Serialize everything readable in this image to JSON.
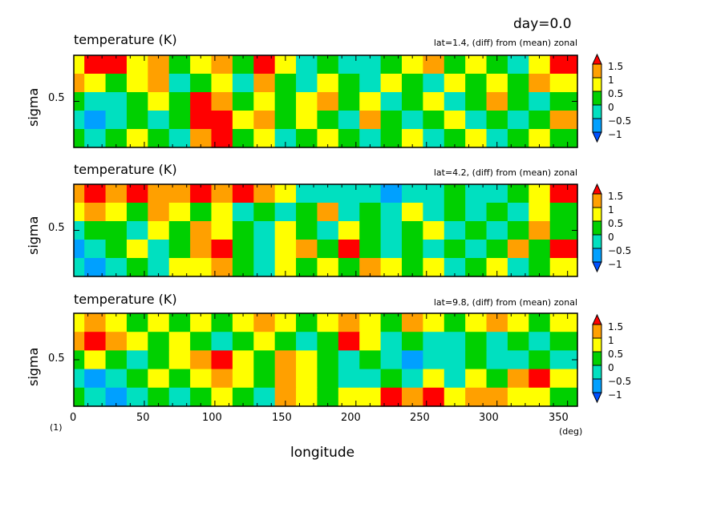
{
  "header": {
    "day_label": "day=0.0",
    "figure_id": "(1)"
  },
  "x_axis": {
    "label": "longitude",
    "unit": "(deg)",
    "ticks": [
      "0",
      "50",
      "100",
      "150",
      "200",
      "250",
      "300",
      "350"
    ]
  },
  "colorbar": {
    "labels": [
      "1.5",
      "1",
      "0.5",
      "0",
      "−0.5",
      "−1"
    ],
    "levels": [
      -1,
      -0.5,
      0,
      0.5,
      1,
      1.5
    ],
    "colors": [
      "#0050ff",
      "#00a0ff",
      "#00e0c0",
      "#00d000",
      "#ffff00",
      "#ffa000",
      "#ff0000"
    ]
  },
  "panels": [
    {
      "title": "temperature (K)",
      "subtitle": "lat=1.4, (diff) from (mean) zonal",
      "ylabel": "sigma",
      "ytick": "0.5"
    },
    {
      "title": "temperature (K)",
      "subtitle": "lat=4.2, (diff) from (mean) zonal",
      "ylabel": "sigma",
      "ytick": "0.5"
    },
    {
      "title": "temperature (K)",
      "subtitle": "lat=9.8, (diff) from (mean) zonal",
      "ylabel": "sigma",
      "ytick": "0.5"
    }
  ],
  "chart_data": [
    {
      "type": "heatmap",
      "title": "temperature (K)",
      "subtitle": "lat=1.4, (diff) from (mean) zonal",
      "xlabel": "longitude",
      "ylabel": "sigma",
      "xlim": [
        0,
        357
      ],
      "ylim": [
        1,
        0
      ],
      "x_ticks": [
        0,
        50,
        100,
        150,
        200,
        250,
        300,
        350
      ],
      "y_ticks": [
        0.5
      ],
      "color_levels": [
        -1,
        -0.5,
        0,
        0.5,
        1,
        1.5
      ],
      "x": [
        0,
        15,
        30,
        45,
        60,
        75,
        90,
        105,
        120,
        135,
        150,
        165,
        180,
        195,
        210,
        225,
        240,
        255,
        270,
        285,
        300,
        315,
        330,
        345
      ],
      "y": [
        0.1,
        0.3,
        0.5,
        0.7,
        0.9
      ],
      "values": [
        [
          0.5,
          1.5,
          1.5,
          0.5,
          1.0,
          0.0,
          0.5,
          1.0,
          0.0,
          1.5,
          0.5,
          -0.5,
          0.0,
          -0.5,
          -0.5,
          0.0,
          0.5,
          1.0,
          0.0,
          0.5,
          0.0,
          -0.5,
          0.5,
          1.5
        ],
        [
          1.0,
          0.5,
          0.0,
          0.5,
          1.0,
          -0.5,
          0.0,
          0.5,
          -0.5,
          1.0,
          0.0,
          -0.5,
          0.5,
          0.0,
          -0.5,
          0.5,
          0.0,
          -0.5,
          0.5,
          0.0,
          0.5,
          0.0,
          1.0,
          0.5
        ],
        [
          0.0,
          -0.5,
          -0.5,
          0.0,
          0.5,
          0.0,
          1.5,
          1.0,
          0.0,
          0.5,
          0.0,
          0.5,
          1.0,
          0.0,
          0.5,
          -0.5,
          0.0,
          0.5,
          -0.5,
          0.0,
          1.0,
          0.0,
          -0.5,
          0.0
        ],
        [
          -0.5,
          -1.0,
          -0.5,
          0.0,
          -0.5,
          0.0,
          1.5,
          1.5,
          0.5,
          1.0,
          0.0,
          0.5,
          0.0,
          -0.5,
          1.0,
          0.0,
          -0.5,
          0.0,
          0.5,
          -0.5,
          0.0,
          -0.5,
          0.0,
          1.0
        ],
        [
          0.0,
          -0.5,
          0.0,
          0.5,
          0.0,
          -0.5,
          1.0,
          1.5,
          0.0,
          0.5,
          -0.5,
          0.0,
          0.5,
          0.0,
          -0.5,
          0.0,
          0.5,
          -0.5,
          0.0,
          0.5,
          -0.5,
          0.0,
          0.5,
          0.0
        ]
      ]
    },
    {
      "type": "heatmap",
      "title": "temperature (K)",
      "subtitle": "lat=4.2, (diff) from (mean) zonal",
      "xlabel": "longitude",
      "ylabel": "sigma",
      "xlim": [
        0,
        357
      ],
      "ylim": [
        1,
        0
      ],
      "x_ticks": [
        0,
        50,
        100,
        150,
        200,
        250,
        300,
        350
      ],
      "y_ticks": [
        0.5
      ],
      "color_levels": [
        -1,
        -0.5,
        0,
        0.5,
        1,
        1.5
      ],
      "x": [
        0,
        15,
        30,
        45,
        60,
        75,
        90,
        105,
        120,
        135,
        150,
        165,
        180,
        195,
        210,
        225,
        240,
        255,
        270,
        285,
        300,
        315,
        330,
        345
      ],
      "y": [
        0.1,
        0.3,
        0.5,
        0.7,
        0.9
      ],
      "values": [
        [
          1.0,
          1.5,
          1.0,
          1.5,
          1.0,
          1.0,
          1.5,
          1.0,
          1.5,
          1.0,
          0.5,
          -0.5,
          -0.5,
          -0.5,
          -0.5,
          -1.0,
          -0.5,
          -0.5,
          0.0,
          -0.5,
          -0.5,
          0.0,
          0.5,
          1.5
        ],
        [
          0.5,
          1.0,
          0.5,
          0.0,
          1.0,
          0.5,
          0.0,
          0.5,
          -0.5,
          0.0,
          -0.5,
          0.0,
          1.0,
          -0.5,
          0.0,
          -0.5,
          0.5,
          -0.5,
          0.0,
          -0.5,
          0.0,
          -0.5,
          0.5,
          0.0
        ],
        [
          -0.5,
          0.0,
          0.0,
          -0.5,
          0.5,
          0.0,
          1.0,
          0.5,
          0.0,
          -0.5,
          0.5,
          0.0,
          -0.5,
          0.5,
          0.0,
          -0.5,
          0.0,
          0.5,
          -0.5,
          0.0,
          -0.5,
          0.0,
          1.0,
          0.0
        ],
        [
          -1.0,
          -0.5,
          0.0,
          0.5,
          -0.5,
          0.0,
          1.0,
          1.5,
          0.0,
          -0.5,
          0.5,
          1.0,
          0.0,
          1.5,
          0.0,
          -0.5,
          0.0,
          -0.5,
          0.0,
          -0.5,
          0.0,
          1.0,
          0.0,
          1.5
        ],
        [
          -0.5,
          -1.0,
          -0.5,
          0.0,
          -0.5,
          0.5,
          0.5,
          1.0,
          0.0,
          -0.5,
          0.5,
          0.0,
          0.5,
          0.0,
          1.0,
          0.5,
          0.0,
          0.5,
          -0.5,
          0.0,
          0.5,
          -0.5,
          0.0,
          0.5
        ]
      ]
    },
    {
      "type": "heatmap",
      "title": "temperature (K)",
      "subtitle": "lat=9.8, (diff) from (mean) zonal",
      "xlabel": "longitude",
      "ylabel": "sigma",
      "xlim": [
        0,
        357
      ],
      "ylim": [
        1,
        0
      ],
      "x_ticks": [
        0,
        50,
        100,
        150,
        200,
        250,
        300,
        350
      ],
      "y_ticks": [
        0.5
      ],
      "color_levels": [
        -1,
        -0.5,
        0,
        0.5,
        1,
        1.5
      ],
      "x": [
        0,
        15,
        30,
        45,
        60,
        75,
        90,
        105,
        120,
        135,
        150,
        165,
        180,
        195,
        210,
        225,
        240,
        255,
        270,
        285,
        300,
        315,
        330,
        345
      ],
      "y": [
        0.1,
        0.3,
        0.5,
        0.7,
        0.9
      ],
      "values": [
        [
          0.5,
          1.0,
          0.5,
          0.0,
          0.5,
          0.0,
          0.5,
          0.0,
          0.5,
          1.0,
          0.5,
          0.0,
          0.5,
          1.0,
          0.5,
          0.0,
          1.0,
          0.5,
          0.0,
          0.5,
          1.0,
          0.5,
          0.0,
          0.5
        ],
        [
          1.0,
          1.5,
          1.0,
          0.5,
          0.0,
          0.5,
          0.0,
          -0.5,
          0.0,
          0.5,
          0.0,
          -0.5,
          0.0,
          1.5,
          0.5,
          -0.5,
          0.0,
          -0.5,
          -0.5,
          0.0,
          -0.5,
          0.0,
          -0.5,
          0.0
        ],
        [
          0.0,
          0.5,
          0.0,
          -0.5,
          0.0,
          0.5,
          1.0,
          1.5,
          0.5,
          0.0,
          1.0,
          0.5,
          0.0,
          -0.5,
          0.0,
          -0.5,
          -1.0,
          -0.5,
          -0.5,
          0.0,
          -0.5,
          -0.5,
          0.0,
          -0.5
        ],
        [
          -0.5,
          -1.0,
          -0.5,
          0.0,
          0.5,
          0.0,
          0.5,
          1.0,
          0.5,
          0.0,
          1.0,
          0.5,
          0.0,
          -0.5,
          -0.5,
          0.0,
          -0.5,
          0.5,
          -0.5,
          0.5,
          0.0,
          1.0,
          1.5,
          0.5
        ],
        [
          0.0,
          -0.5,
          -1.0,
          -0.5,
          0.0,
          -0.5,
          0.0,
          0.5,
          0.0,
          -0.5,
          1.0,
          0.5,
          0.0,
          0.5,
          0.5,
          1.5,
          1.0,
          1.5,
          0.5,
          1.0,
          1.0,
          0.5,
          0.5,
          0.0
        ]
      ]
    }
  ]
}
